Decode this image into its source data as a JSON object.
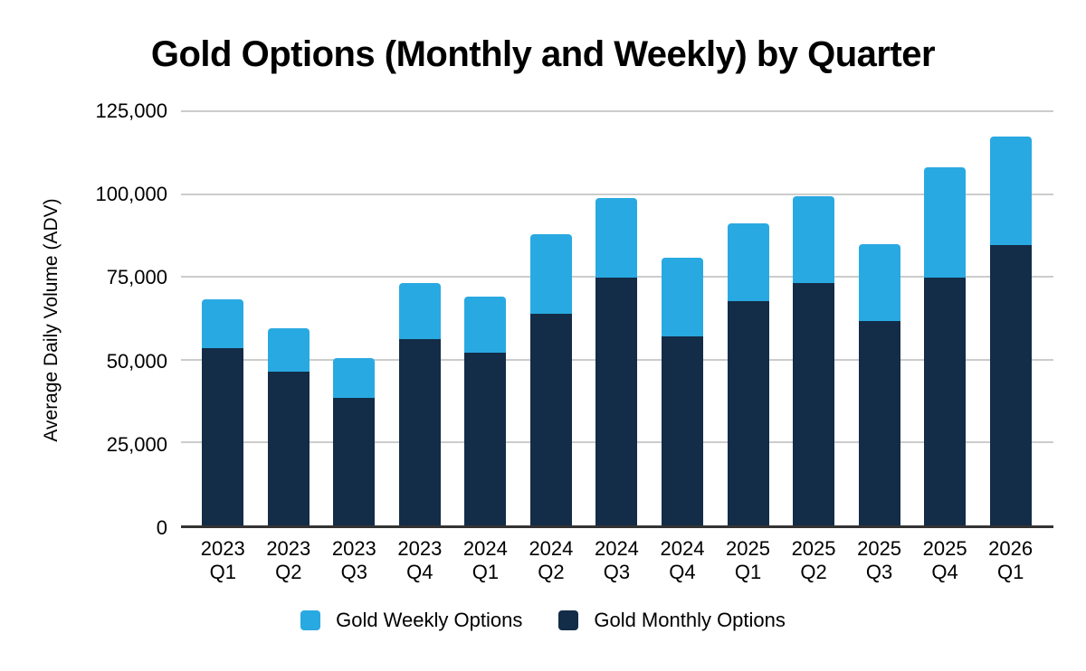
{
  "title": "Gold Options (Monthly and Weekly) by Quarter",
  "colors": {
    "weekly_blue": "#29A9E1",
    "monthly_navy": "#132C47",
    "gridline": "#CCCCCC",
    "axis_line": "#333333",
    "text": "#000000",
    "background": "#FFFFFF"
  },
  "chart_data": {
    "type": "bar",
    "stacked": true,
    "title": "Gold Options (Monthly and Weekly) by Quarter",
    "xlabel": "",
    "ylabel": "Average Daily Volume (ADV)",
    "ylim": [
      0,
      125000
    ],
    "grid": true,
    "legend_position": "bottom",
    "categories": [
      "2023 Q1",
      "2023 Q2",
      "2023 Q3",
      "2023 Q4",
      "2024 Q1",
      "2024 Q2",
      "2024 Q3",
      "2024 Q4",
      "2025 Q1",
      "2025 Q2",
      "2025 Q3",
      "2025 Q4",
      "2026 Q1"
    ],
    "yticks": [
      {
        "value": 0,
        "label": "0"
      },
      {
        "value": 25000,
        "label": "25,000"
      },
      {
        "value": 50000,
        "label": "50,000"
      },
      {
        "value": 75000,
        "label": "75,000"
      },
      {
        "value": 100000,
        "label": "100,000"
      },
      {
        "value": 125000,
        "label": "125,000"
      }
    ],
    "series": [
      {
        "name": "Gold Monthly Options",
        "color": "#132C47",
        "values": [
          53500,
          46400,
          38500,
          56300,
          52200,
          63800,
          74700,
          57100,
          67800,
          73200,
          61800,
          74700,
          84500
        ]
      },
      {
        "name": "Gold Weekly Options",
        "color": "#29A9E1",
        "values": [
          14800,
          13100,
          11900,
          16800,
          16900,
          24200,
          24100,
          23600,
          23500,
          26200,
          23000,
          33500,
          33000
        ]
      }
    ],
    "totals": [
      68300,
      59500,
      50400,
      73100,
      69100,
      88000,
      98800,
      80700,
      91300,
      99400,
      84800,
      108200,
      117500
    ],
    "legend": {
      "items": [
        {
          "label": "Gold Weekly Options",
          "color": "#29A9E1"
        },
        {
          "label": "Gold Monthly Options",
          "color": "#132C47"
        }
      ]
    }
  }
}
